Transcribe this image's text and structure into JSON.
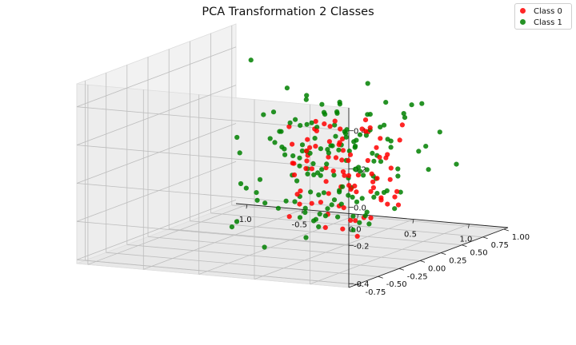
{
  "chart_data": {
    "type": "scatter",
    "projection": "3d",
    "title": "PCA Transformation 2 Classes",
    "xlabel": "",
    "ylabel": "",
    "zlabel": "",
    "xlim": [
      -1.1,
      1.35
    ],
    "ylim": [
      -0.85,
      1.05
    ],
    "zlim": [
      -0.42,
      0.52
    ],
    "x_ticks": [
      "-1.0",
      "-0.5",
      "0.0",
      "0.5",
      "1.0"
    ],
    "y_ticks": [
      "-0.75",
      "-0.50",
      "-0.25",
      "0.00",
      "0.25",
      "0.50",
      "0.75",
      "1.00"
    ],
    "z_ticks": [
      "-0.4",
      "-0.2",
      "0.0",
      "0.2",
      "0.4"
    ],
    "grid": true,
    "legend_position": "top-right",
    "series": [
      {
        "name": "Class 0",
        "color": "#ff0000",
        "x": [
          0.85,
          0.78,
          0.62,
          0.55,
          0.48,
          0.92,
          0.7,
          0.35,
          0.28,
          0.45,
          0.66,
          0.88,
          1.02,
          0.74,
          0.59,
          0.41,
          0.32,
          0.2,
          0.12,
          0.05,
          -0.05,
          0.15,
          0.25,
          0.38,
          0.52,
          0.6,
          0.72,
          0.81,
          0.95,
          1.05,
          0.3,
          0.18,
          0.42,
          0.56,
          0.68,
          0.5,
          0.22,
          0.1,
          -0.02,
          0.08,
          0.36,
          0.64,
          0.77,
          0.9,
          0.46,
          0.27,
          0.14,
          0.58,
          0.84,
          0.98,
          -0.1,
          0.02,
          0.19,
          0.33,
          0.49,
          0.61,
          0.73,
          0.87,
          0.4,
          0.24,
          0.11,
          0.03,
          -0.08,
          0.52,
          0.67,
          0.79,
          0.93,
          0.35,
          0.21,
          0.45,
          0.62,
          0.57,
          0.31,
          0.16,
          0.06,
          0.44,
          0.7,
          0.83,
          1.0,
          0.26,
          0.48,
          0.37,
          0.54,
          0.13,
          0.69
        ],
        "y": [
          0.1,
          0.2,
          0.05,
          0.3,
          0.15,
          -0.1,
          0.35,
          0.4,
          0.5,
          0.25,
          0.45,
          0.0,
          -0.15,
          0.55,
          0.6,
          0.65,
          0.35,
          0.45,
          0.55,
          0.6,
          0.5,
          0.3,
          0.2,
          0.1,
          0.0,
          -0.1,
          -0.2,
          -0.25,
          -0.3,
          -0.35,
          0.7,
          0.7,
          0.75,
          0.4,
          0.3,
          0.55,
          0.25,
          0.15,
          0.35,
          0.45,
          -0.05,
          -0.15,
          0.15,
          0.25,
          0.05,
          0.6,
          0.65,
          0.5,
          0.4,
          0.1,
          0.4,
          0.2,
          0.1,
          0.0,
          -0.2,
          0.2,
          0.05,
          -0.1,
          0.3,
          0.35,
          0.5,
          0.25,
          0.55,
          0.45,
          0.6,
          0.5,
          0.2,
          0.5,
          0.6,
          -0.1,
          0.0,
          0.1,
          -0.05,
          0.05,
          0.15,
          0.35,
          0.65,
          0.3,
          0.0,
          0.2,
          0.25,
          0.45,
          0.15,
          0.3,
          0.4
        ],
        "z": [
          -0.05,
          -0.1,
          0.0,
          -0.15,
          0.05,
          -0.2,
          -0.08,
          0.1,
          0.02,
          -0.12,
          -0.2,
          0.08,
          -0.05,
          -0.25,
          -0.02,
          0.12,
          0.2,
          0.15,
          0.05,
          -0.1,
          0.0,
          -0.05,
          0.18,
          -0.18,
          -0.22,
          0.1,
          0.05,
          -0.12,
          -0.18,
          -0.25,
          0.1,
          -0.15,
          -0.05,
          0.15,
          -0.28,
          -0.1,
          0.08,
          0.0,
          -0.2,
          0.12,
          0.02,
          -0.08,
          0.2,
          0.0,
          -0.3,
          -0.02,
          0.1,
          0.05,
          -0.15,
          0.1,
          -0.05,
          0.18,
          -0.2,
          0.05,
          0.12,
          -0.1,
          -0.25,
          0.02,
          0.1,
          -0.12,
          0.15,
          -0.08,
          0.05,
          0.2,
          -0.22,
          0.1,
          -0.05,
          -0.18,
          -0.3,
          -0.15,
          0.15,
          0.05,
          -0.1,
          0.12,
          -0.28,
          0.0,
          0.15,
          -0.2,
          -0.12,
          0.22,
          -0.06,
          -0.15,
          -0.32,
          0.06,
          0.12
        ]
      },
      {
        "name": "Class 1",
        "color": "#008000",
        "x": [
          -0.55,
          -0.3,
          -0.2,
          -0.1,
          0.0,
          0.1,
          0.2,
          0.3,
          -0.4,
          -0.25,
          -0.15,
          -0.05,
          0.05,
          0.15,
          0.25,
          0.35,
          0.45,
          0.55,
          0.65,
          0.75,
          0.85,
          0.95,
          1.05,
          1.15,
          1.25,
          -0.35,
          -0.18,
          -0.08,
          0.02,
          0.12,
          0.22,
          0.32,
          0.42,
          0.52,
          0.62,
          0.72,
          0.82,
          0.92,
          -0.45,
          -0.28,
          -0.12,
          0.08,
          0.18,
          0.28,
          0.38,
          0.48,
          0.58,
          0.68,
          0.78,
          0.88,
          0.98,
          1.08,
          -0.2,
          -0.02,
          0.06,
          0.16,
          0.26,
          0.36,
          0.46,
          0.56,
          0.66,
          0.76,
          0.86,
          0.96,
          1.1,
          1.2,
          -0.32,
          -0.22,
          -0.1,
          0.04,
          0.14,
          0.24,
          0.34,
          0.44,
          0.54,
          0.64,
          0.74,
          0.84,
          0.94,
          -0.38,
          -0.26,
          -0.16,
          -0.06,
          0.0,
          0.09,
          0.19,
          0.29,
          0.39,
          0.49,
          0.59,
          0.69,
          0.79,
          0.89,
          0.99,
          1.12,
          -0.5,
          -0.42,
          -0.3,
          -0.14,
          0.1,
          0.3,
          0.5,
          0.7,
          0.9,
          0.2,
          0.4,
          0.6,
          0.8,
          1.0,
          1.3,
          -0.12,
          0.03,
          0.13,
          0.23,
          0.33,
          0.43,
          0.53,
          0.63,
          0.73,
          0.83,
          0.93,
          1.03,
          1.18,
          -0.24,
          -0.04,
          0.07,
          0.17,
          0.27,
          0.37,
          0.47,
          0.57,
          0.67,
          0.77,
          0.87,
          0.97,
          -0.34,
          -0.16,
          0.11,
          0.21,
          0.31,
          0.41,
          0.51,
          0.61,
          0.71,
          0.81,
          0.91,
          1.01,
          0.0,
          0.25,
          0.45,
          0.65
        ],
        "y": [
          0.5,
          0.6,
          0.7,
          0.75,
          0.8,
          0.7,
          0.65,
          0.6,
          0.45,
          0.5,
          0.55,
          0.6,
          0.55,
          0.5,
          0.45,
          0.4,
          0.35,
          0.3,
          0.25,
          0.2,
          0.15,
          0.1,
          0.05,
          0.0,
          -0.1,
          0.3,
          0.35,
          0.4,
          0.45,
          0.4,
          0.35,
          0.3,
          0.25,
          0.2,
          0.15,
          0.1,
          0.05,
          0.0,
          0.2,
          0.25,
          0.3,
          0.25,
          0.2,
          0.15,
          0.1,
          0.05,
          0.0,
          -0.05,
          -0.1,
          -0.15,
          -0.2,
          -0.25,
          0.65,
          0.7,
          0.75,
          0.8,
          0.85,
          0.8,
          0.75,
          0.7,
          0.65,
          0.6,
          0.55,
          0.5,
          0.4,
          0.3,
          0.6,
          0.65,
          0.7,
          0.6,
          0.55,
          0.5,
          0.45,
          0.4,
          0.35,
          0.3,
          0.25,
          0.2,
          0.15,
          0.35,
          0.4,
          0.45,
          0.5,
          0.3,
          0.2,
          0.1,
          0.0,
          -0.1,
          -0.2,
          -0.3,
          -0.4,
          -0.5,
          -0.6,
          -0.55,
          -0.45,
          0.3,
          0.1,
          0.0,
          -0.1,
          -0.2,
          -0.3,
          -0.4,
          -0.5,
          -0.6,
          0.9,
          0.85,
          0.8,
          0.75,
          0.7,
          0.5,
          0.2,
          0.15,
          0.1,
          0.05,
          0.0,
          -0.05,
          -0.1,
          -0.15,
          -0.2,
          -0.25,
          -0.3,
          -0.35,
          -0.3,
          0.45,
          0.5,
          0.55,
          0.6,
          0.55,
          0.5,
          0.45,
          0.4,
          0.35,
          0.3,
          0.25,
          0.2,
          0.1,
          0.15,
          0.35,
          0.3,
          0.25,
          0.2,
          0.15,
          0.1,
          0.05,
          0.0,
          -0.05,
          -0.1,
          0.0,
          0.1,
          0.2,
          0.3
        ],
        "z": [
          0.45,
          0.3,
          0.25,
          0.2,
          0.15,
          0.22,
          0.1,
          0.05,
          0.18,
          0.0,
          -0.05,
          0.05,
          -0.1,
          0.0,
          0.1,
          -0.15,
          0.05,
          0.12,
          -0.05,
          0.2,
          0.08,
          -0.1,
          0.15,
          0.05,
          -0.05,
          -0.2,
          0.12,
          -0.25,
          0.0,
          0.15,
          -0.18,
          0.08,
          -0.28,
          0.18,
          -0.1,
          0.02,
          -0.22,
          0.12,
          0.1,
          -0.12,
          0.05,
          -0.3,
          0.2,
          -0.05,
          0.1,
          -0.2,
          0.25,
          -0.15,
          0.0,
          0.18,
          -0.08,
          -0.2,
          0.0,
          -0.1,
          0.22,
          -0.02,
          0.15,
          -0.25,
          0.12,
          0.05,
          -0.12,
          0.2,
          0.28,
          0.05,
          0.1,
          0.0,
          -0.05,
          0.1,
          -0.15,
          0.18,
          -0.28,
          0.02,
          0.12,
          -0.2,
          -0.32,
          0.15,
          -0.05,
          0.22,
          -0.1,
          -0.25,
          0.05,
          0.15,
          -0.3,
          0.2,
          -0.1,
          0.0,
          0.1,
          -0.2,
          0.05,
          -0.05,
          0.12,
          -0.15,
          0.0,
          0.1,
          -0.05,
          0.0,
          -0.35,
          -0.3,
          -0.1,
          -0.38,
          -0.15,
          0.05,
          -0.25,
          -0.1,
          0.3,
          0.22,
          0.18,
          0.25,
          0.12,
          0.0,
          0.25,
          -0.2,
          0.05,
          -0.15,
          0.1,
          -0.25,
          0.0,
          0.15,
          -0.1,
          0.2,
          -0.05,
          0.1,
          0.05,
          0.1,
          -0.12,
          0.2,
          -0.22,
          0.08,
          -0.32,
          0.12,
          -0.05,
          -0.18,
          0.02,
          0.15,
          -0.2,
          -0.12,
          -0.22,
          0.18,
          -0.35,
          -0.28,
          0.1,
          -0.12,
          0.05,
          -0.3,
          0.02,
          -0.18,
          0.1,
          0.15,
          0.35,
          0.28,
          0.26
        ]
      }
    ]
  }
}
